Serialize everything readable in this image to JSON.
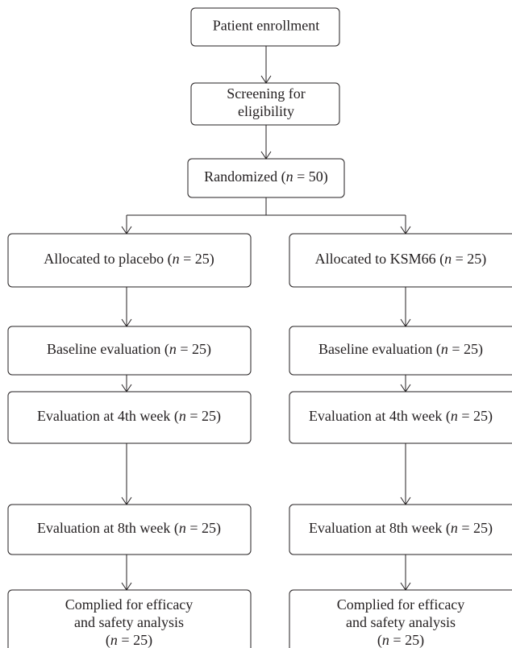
{
  "top": [
    {
      "lines": [
        [
          "Patient enrollment"
        ]
      ]
    },
    {
      "lines": [
        [
          "Screening for"
        ],
        [
          "eligibility"
        ]
      ]
    },
    {
      "lines": [
        [
          "Randomized (",
          "n",
          " = 50)"
        ]
      ]
    }
  ],
  "left": [
    {
      "lines": [
        [
          "Allocated to placebo (",
          "n",
          " = 25)"
        ]
      ]
    },
    {
      "lines": [
        [
          "Baseline evaluation (",
          "n",
          " = 25)"
        ]
      ]
    },
    {
      "lines": [
        [
          "Evaluation at 4th week (",
          "n",
          " = 25)"
        ]
      ]
    },
    {
      "lines": [
        [
          "Evaluation at 8th week (",
          "n",
          " = 25)"
        ]
      ]
    },
    {
      "lines": [
        [
          "Complied for efficacy"
        ],
        [
          "and safety analysis"
        ],
        [
          "(",
          "n",
          " = 25)"
        ]
      ]
    }
  ],
  "right": [
    {
      "lines": [
        [
          "Allocated to KSM66 (",
          "n",
          " = 25)"
        ]
      ]
    },
    {
      "lines": [
        [
          "Baseline evaluation (",
          "n",
          " = 25)"
        ]
      ]
    },
    {
      "lines": [
        [
          "Evaluation at 4th week (",
          "n",
          " = 25)"
        ]
      ]
    },
    {
      "lines": [
        [
          "Evaluation at 8th week (",
          "n",
          " = 25)"
        ]
      ]
    },
    {
      "lines": [
        [
          "Complied for efficacy"
        ],
        [
          "and safety analysis"
        ],
        [
          "(",
          "n",
          " = 25)"
        ]
      ]
    }
  ]
}
